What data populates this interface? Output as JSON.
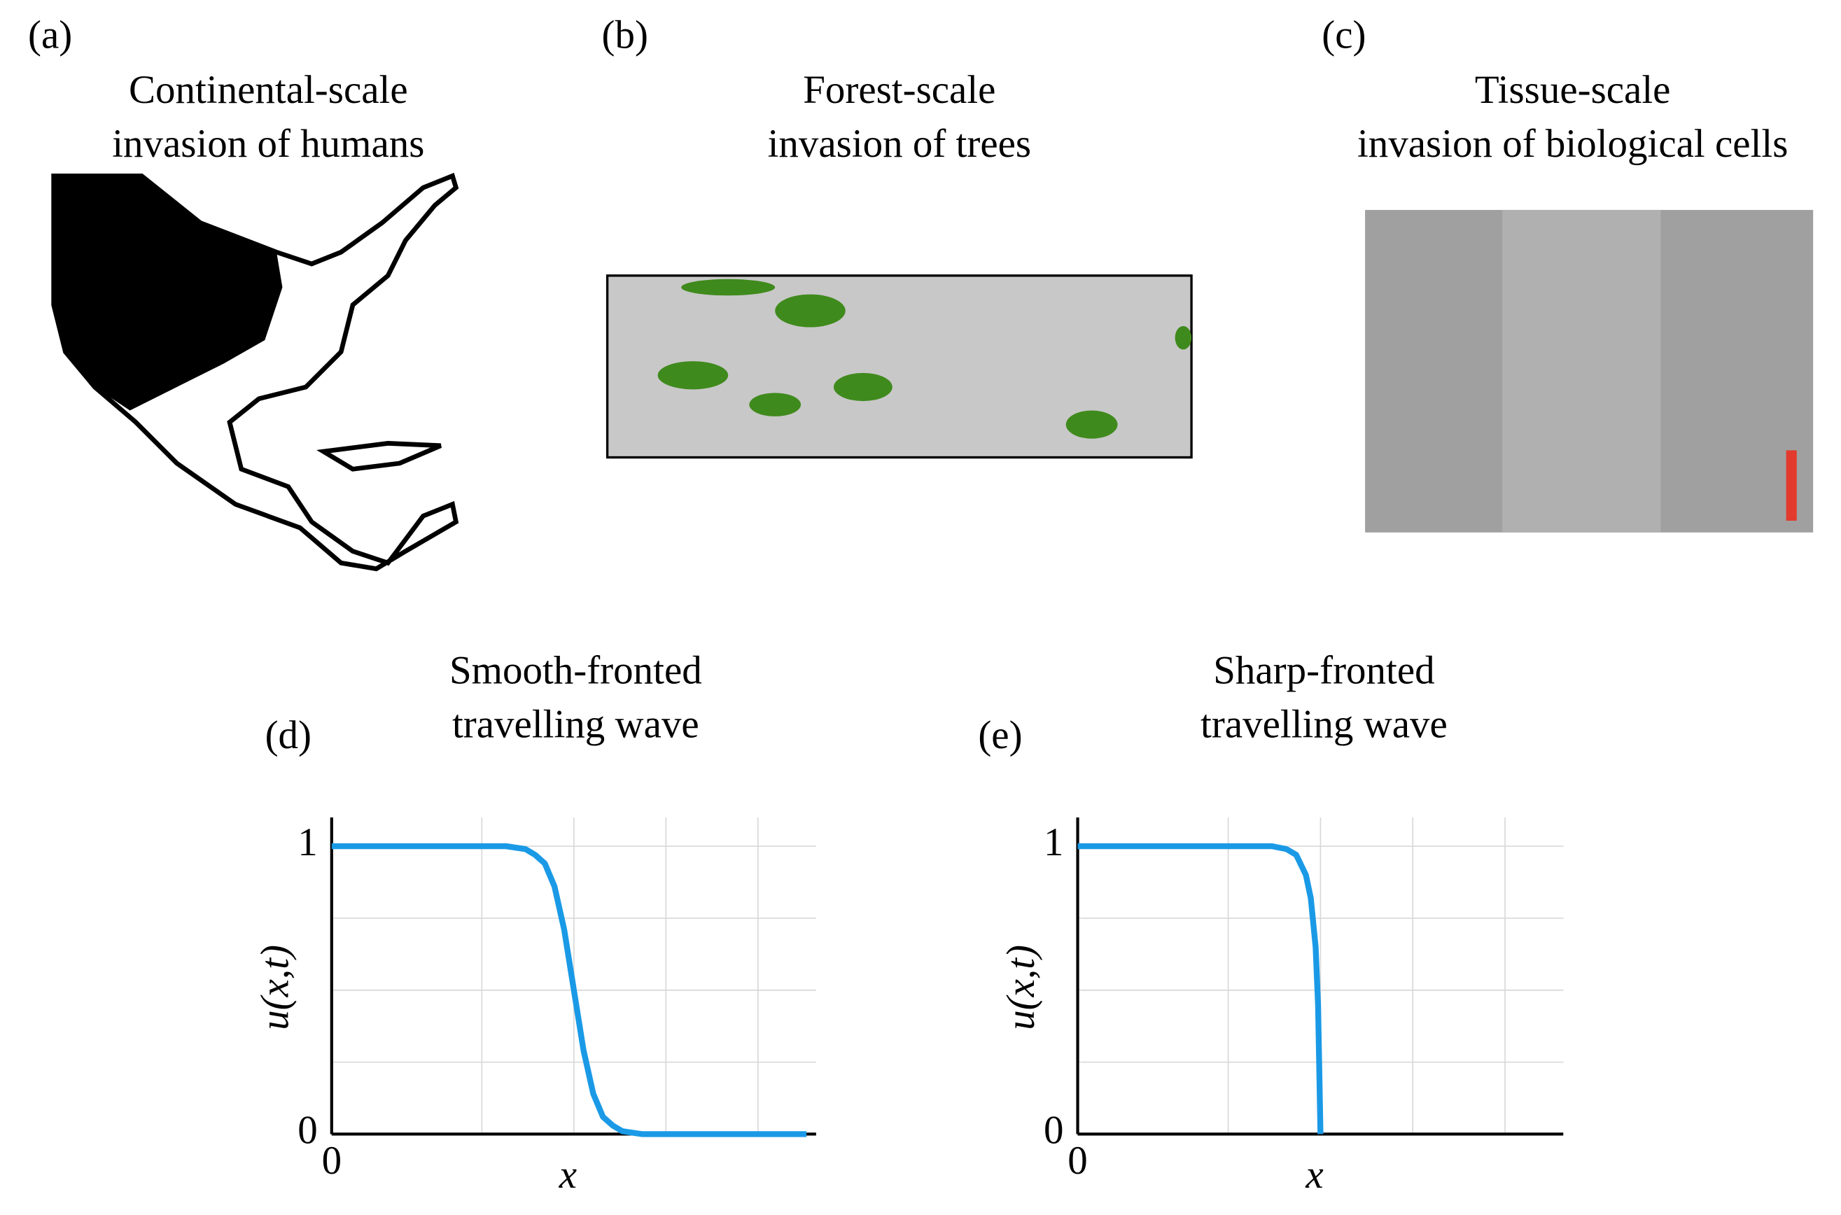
{
  "panels": [
    {
      "label": "(a)",
      "title": [
        "Continental-scale",
        "invasion of humans"
      ]
    },
    {
      "label": "(b)",
      "title": [
        "Forest-scale",
        "invasion of trees"
      ]
    },
    {
      "label": "(c)",
      "title": [
        "Tissue-scale",
        "invasion of biological cells"
      ]
    }
  ],
  "chart_data": [
    {
      "type": "line",
      "label": "(d)",
      "title": [
        "Smooth-fronted",
        "travelling wave"
      ],
      "xlabel": "x",
      "ylabel": "u(x,t)",
      "x": [
        0,
        10,
        20,
        30,
        36,
        40,
        42,
        44,
        46,
        48,
        50,
        52,
        54,
        56,
        58,
        60,
        64,
        70,
        80,
        90,
        98
      ],
      "values": [
        1,
        1,
        1,
        1,
        1,
        0.99,
        0.97,
        0.94,
        0.86,
        0.71,
        0.5,
        0.29,
        0.14,
        0.06,
        0.03,
        0.01,
        0,
        0,
        0,
        0,
        0
      ],
      "color": "#1a9ae6",
      "xlim": [
        0,
        100
      ],
      "ylim": [
        0,
        1.1
      ],
      "xticks": [
        0
      ],
      "yticks": [
        0,
        1
      ],
      "xgrid": [
        31,
        50,
        69,
        88
      ],
      "ygrid": [
        0.25,
        0.5,
        0.75,
        1
      ]
    },
    {
      "type": "line",
      "label": "(e)",
      "title": [
        "Sharp-fronted",
        "travelling wave"
      ],
      "xlabel": "x",
      "ylabel": "u(x,t)",
      "x": [
        0,
        20,
        40,
        43,
        45,
        47,
        48,
        49,
        49.5,
        50
      ],
      "values": [
        1,
        1,
        1,
        0.99,
        0.97,
        0.9,
        0.82,
        0.65,
        0.45,
        0
      ],
      "color": "#1a9ae6",
      "xlim": [
        0,
        100
      ],
      "ylim": [
        0,
        1.1
      ],
      "xticks": [
        0
      ],
      "yticks": [
        0,
        1
      ],
      "xgrid": [
        31,
        50,
        69,
        88
      ],
      "ygrid": [
        0.25,
        0.5,
        0.75,
        1
      ]
    }
  ]
}
